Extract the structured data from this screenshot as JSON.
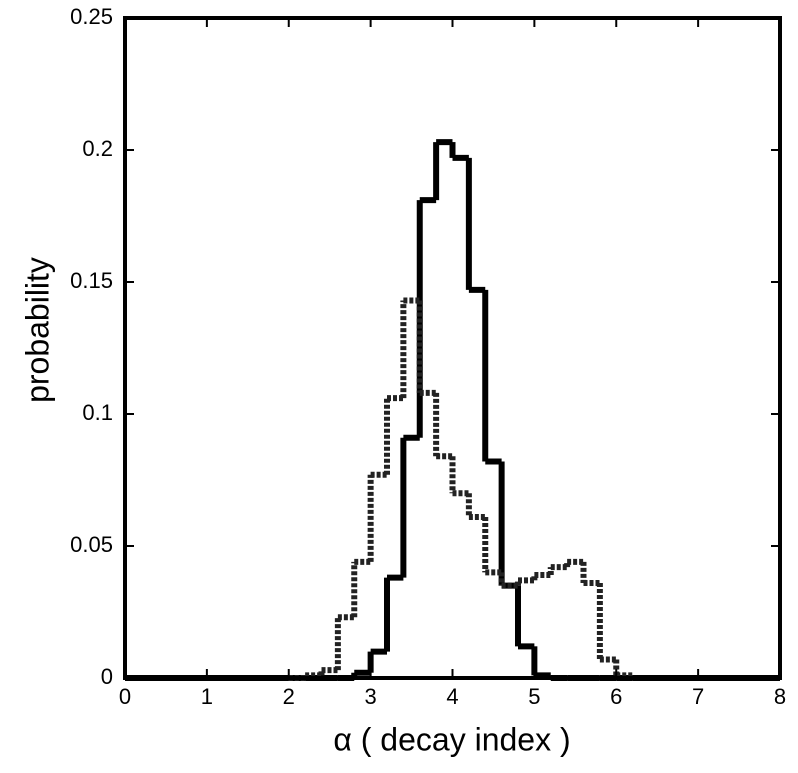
{
  "chart_data": {
    "type": "histogram",
    "xlabel": "α ( decay index )",
    "ylabel": "probability",
    "bins": [
      2.0,
      2.2,
      2.4,
      2.6,
      2.8,
      3.0,
      3.2,
      3.4,
      3.6,
      3.8,
      4.0,
      4.2,
      4.4,
      4.6,
      4.8,
      5.0,
      5.2,
      5.4,
      5.6,
      5.8,
      6.0,
      6.2
    ],
    "series": [
      {
        "color": "#000000",
        "line_style": "solid",
        "values": [
          0,
          0,
          0,
          0,
          0.002,
          0.01,
          0.038,
          0.091,
          0.181,
          0.203,
          0.197,
          0.147,
          0.082,
          0.035,
          0.012,
          0.001,
          0,
          0,
          0,
          0,
          0
        ]
      },
      {
        "color": "#222222",
        "line_style": "dotted",
        "values": [
          0,
          0.001,
          0.003,
          0.023,
          0.044,
          0.077,
          0.106,
          0.143,
          0.108,
          0.084,
          0.07,
          0.061,
          0.04,
          0.035,
          0.037,
          0.039,
          0.042,
          0.044,
          0.036,
          0.007,
          0.001
        ]
      }
    ],
    "xlim": [
      0,
      8
    ],
    "xticks": [
      0,
      1,
      2,
      3,
      4,
      5,
      6,
      7,
      8
    ],
    "ylim": [
      0,
      0.25
    ],
    "yticks": [
      0,
      0.05,
      0.1,
      0.15,
      0.2,
      0.25
    ]
  }
}
